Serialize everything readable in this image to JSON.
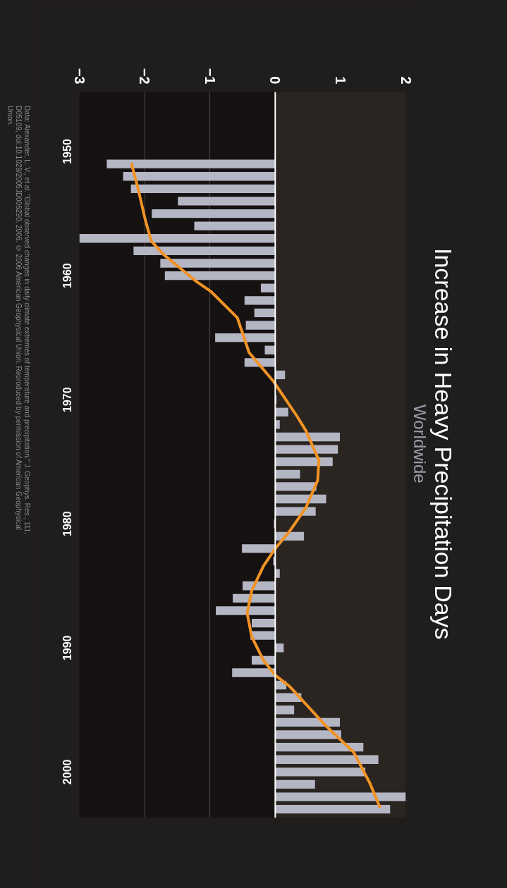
{
  "chart_data": {
    "type": "bar",
    "orientation": "horizontal",
    "title": "Increase in Heavy Precipitation Days",
    "subtitle": "Worldwide",
    "annotations": [
      "Data: Alexander, L. V., et al. “Global observed changes in daily climate extremes of temperature and precipitation.” J. Geophys. Res., 111,\nD05109, doi:10.1029/2005JD006290, 2006. © 2006 American Geophysical Union. Reproduced by permission of American Geophysical\nUnion."
    ],
    "x": [
      1951,
      1952,
      1953,
      1954,
      1955,
      1956,
      1957,
      1958,
      1959,
      1960,
      1961,
      1962,
      1963,
      1964,
      1965,
      1966,
      1967,
      1968,
      1969,
      1970,
      1971,
      1972,
      1973,
      1974,
      1975,
      1976,
      1977,
      1978,
      1979,
      1980,
      1981,
      1982,
      1983,
      1984,
      1985,
      1986,
      1987,
      1988,
      1989,
      1990,
      1991,
      1992,
      1993,
      1994,
      1995,
      1996,
      1997,
      1998,
      1999,
      2000,
      2001,
      2002,
      2003
    ],
    "series": [
      {
        "color": "#b4b6c4",
        "values": [
          -2.58,
          -2.33,
          -2.21,
          -1.49,
          -1.89,
          -1.24,
          -3.0,
          -2.17,
          -1.76,
          -1.69,
          -0.22,
          -0.47,
          -0.32,
          -0.45,
          -0.92,
          -0.16,
          -0.47,
          0.15,
          0.0,
          0.02,
          0.2,
          0.07,
          0.99,
          0.96,
          0.88,
          0.38,
          0.63,
          0.78,
          0.62,
          -0.02,
          0.44,
          -0.51,
          -0.03,
          0.07,
          -0.5,
          -0.65,
          -0.91,
          -0.36,
          -0.38,
          0.13,
          -0.36,
          -0.66,
          0.17,
          0.4,
          0.29,
          0.99,
          1.01,
          1.35,
          1.58,
          1.38,
          0.61,
          2.0,
          1.76
        ]
      },
      {
        "type": "line",
        "color": "#f39325",
        "x": [
          1951,
          1953,
          1955.5,
          1957.2,
          1958.3,
          1960.5,
          1961.3,
          1963.4,
          1966.2,
          1968.5,
          1971.3,
          1972.5,
          1974.9,
          1976.5,
          1978.7,
          1980.6,
          1982,
          1983.4,
          1985.4,
          1987.2,
          1989.1,
          1991,
          1992.2,
          1993.1,
          1996.2,
          1998.4,
          2000.9,
          2002.8
        ],
        "values": [
          -2.2,
          -2.1,
          -1.99,
          -1.9,
          -1.71,
          -1.2,
          -0.98,
          -0.58,
          -0.4,
          -0.03,
          0.33,
          0.47,
          0.67,
          0.65,
          0.47,
          0.22,
          0,
          -0.18,
          -0.36,
          -0.43,
          -0.36,
          -0.18,
          0.0,
          0.22,
          0.76,
          1.2,
          1.45,
          1.6
        ]
      }
    ],
    "xlim": [
      -3,
      2
    ],
    "xticks": [
      -3,
      -2,
      -1,
      0,
      1,
      2
    ],
    "ylim": [
      2003.7,
      1945.2
    ],
    "yticks": [
      1950,
      1960,
      1970,
      1980,
      1990,
      2000
    ],
    "grid": "x",
    "ref_lines": [
      {
        "axis": "x",
        "value": 0,
        "color": "#ffffff"
      }
    ],
    "bands": [
      {
        "axis": "x",
        "from": 0,
        "to": 2,
        "color": "#2a2521"
      }
    ]
  }
}
